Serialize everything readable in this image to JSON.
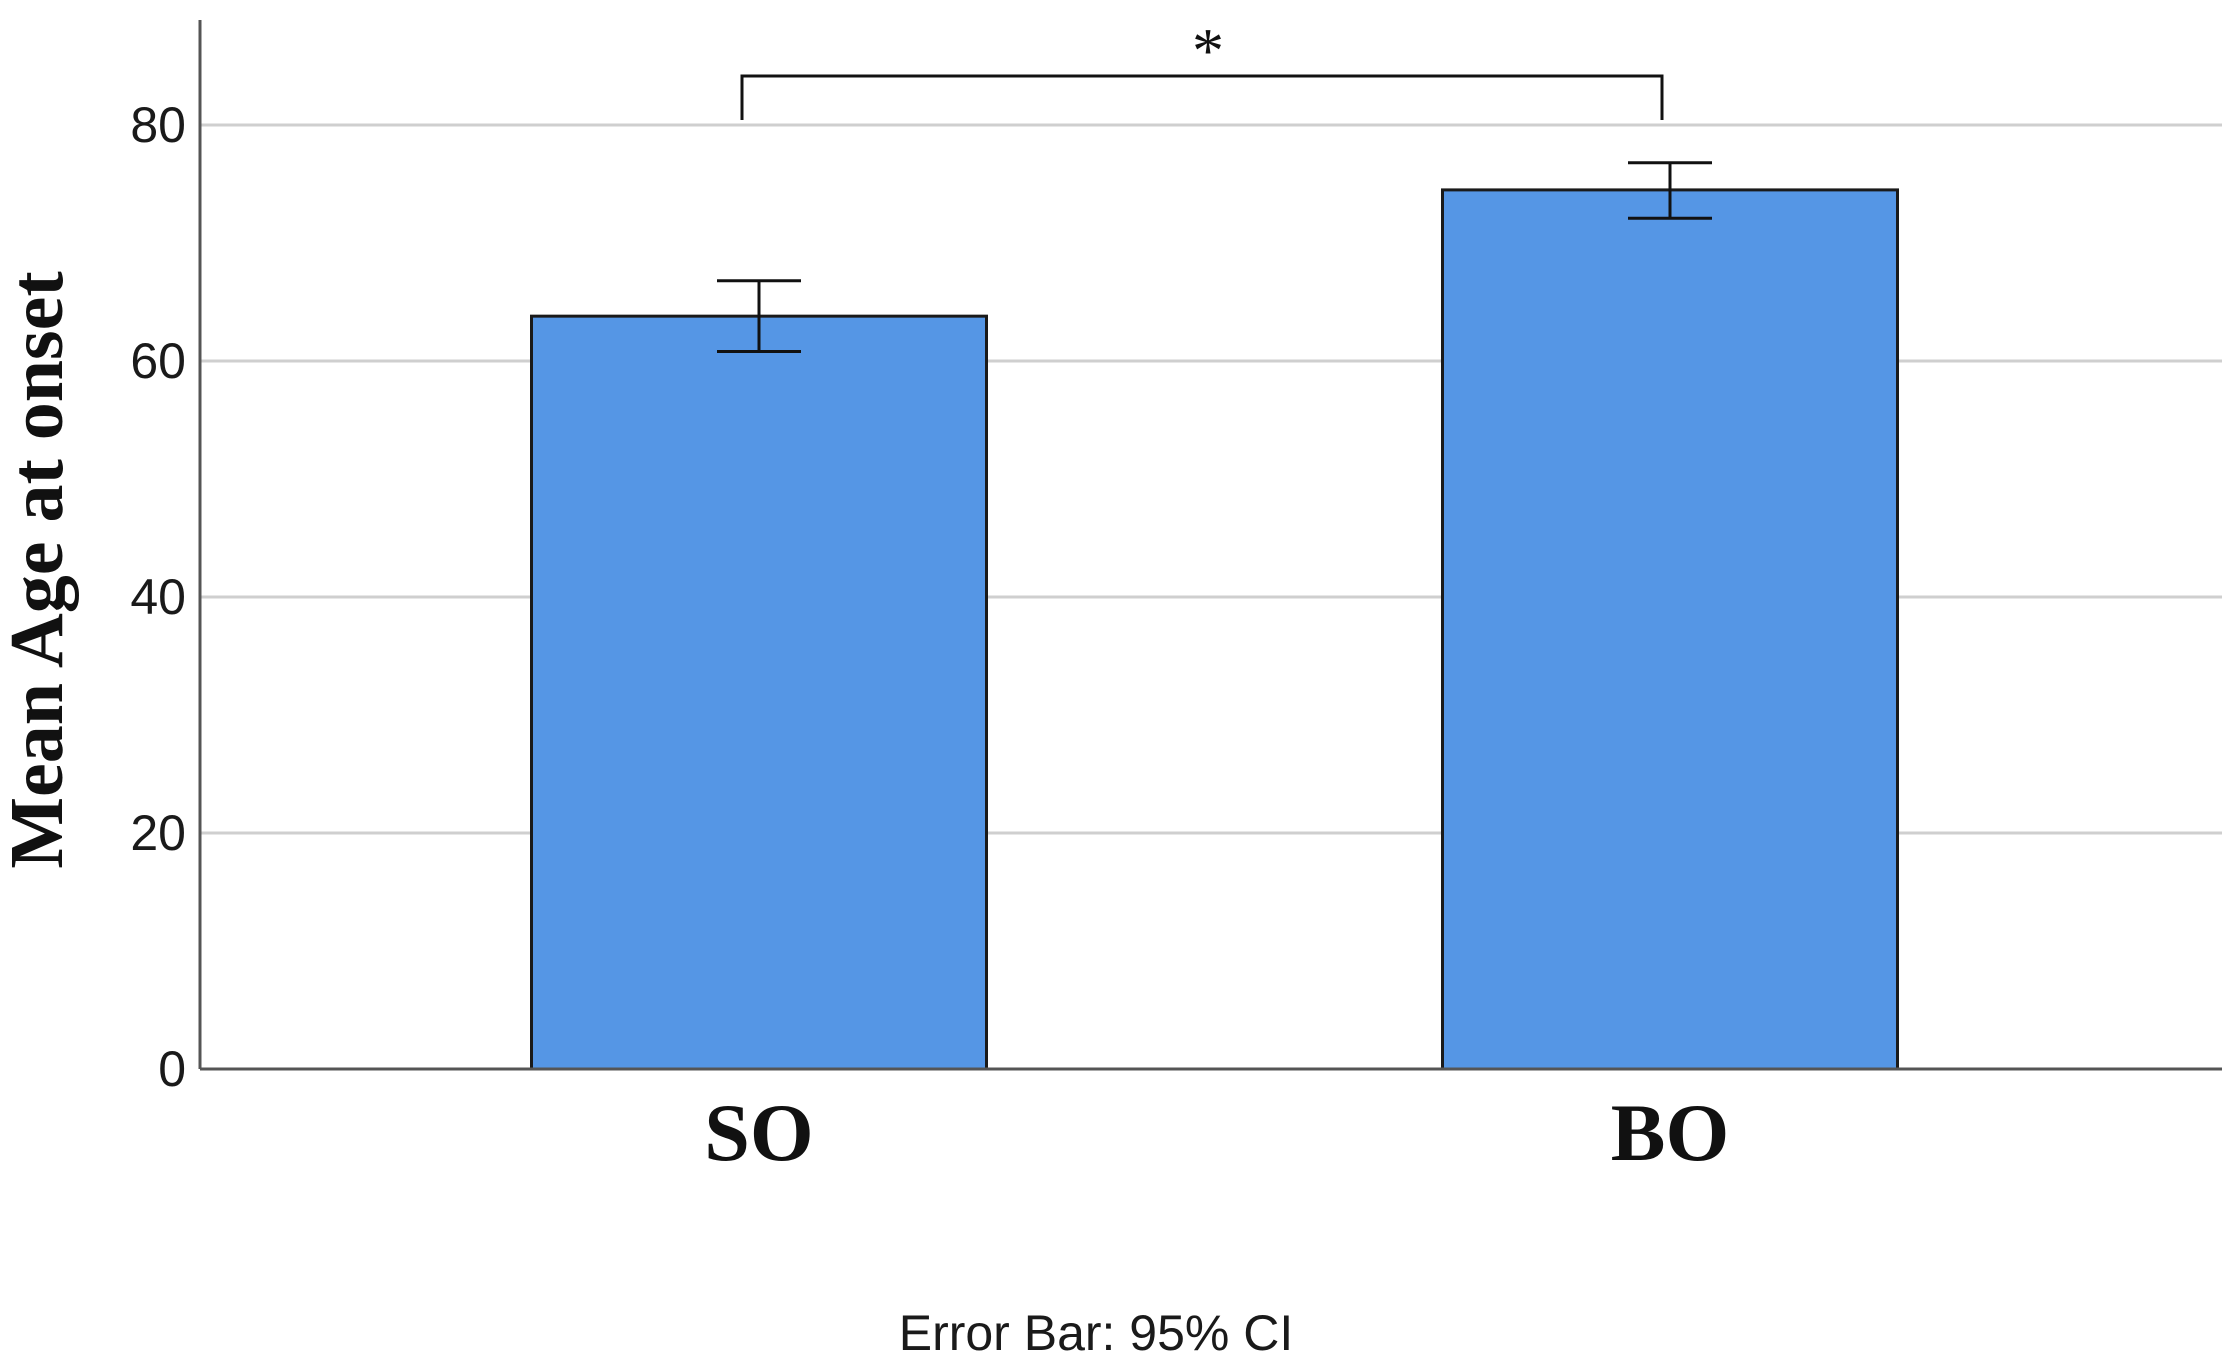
{
  "chart_data": {
    "type": "bar",
    "categories": [
      "SO",
      "BO"
    ],
    "values": [
      63.8,
      74.5
    ],
    "error_bars": [
      {
        "lower": 60.8,
        "upper": 66.8
      },
      {
        "lower": 72.1,
        "upper": 76.8
      }
    ],
    "ylabel": "Mean Age at onset",
    "xlabel": "",
    "ylim": [
      0,
      80
    ],
    "yticks": [
      0,
      20,
      40,
      60,
      80
    ],
    "grid": true,
    "bar_color": "#5596e5",
    "bar_edge_color": "#1a1a1a",
    "significance": {
      "between": [
        "SO",
        "BO"
      ],
      "label": "*"
    },
    "footnote": "Error Bar: 95% CI"
  }
}
